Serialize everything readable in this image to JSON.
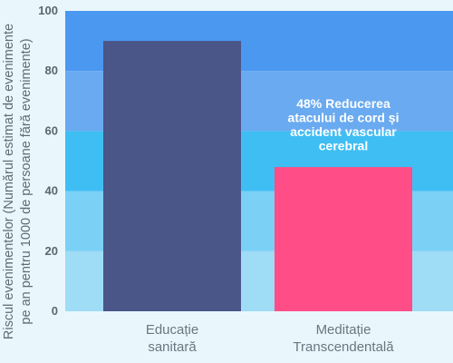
{
  "chart_data": {
    "type": "bar",
    "title": "",
    "ylabel": "Riscul evenimentelor (Numărul estimat de evenimente pe an pentru 1000 de persoane fără evenimente)",
    "ylabel_lines": [
      "Riscul evenimentelor (Numărul estimat de evenimente",
      "pe an pentru 1000 de persoane fără evenimente)"
    ],
    "xlabel": "",
    "ylim": [
      0,
      100
    ],
    "yticks": [
      0,
      20,
      40,
      60,
      80,
      100
    ],
    "categories": [
      "Educație sanitară",
      "Meditație Transcendentală"
    ],
    "category_lines": [
      [
        "Educație",
        "sanitară"
      ],
      [
        "Meditație",
        "Transcendentală"
      ]
    ],
    "values": [
      90,
      48
    ],
    "bar_colors": [
      "#4a5588",
      "#ff4d88"
    ],
    "band_colors": [
      "#9fdcf5",
      "#7ad1f5",
      "#3fbef3",
      "#6aaaf0",
      "#4a98f0"
    ],
    "grid": false,
    "annotation": {
      "category_index": 1,
      "lines": [
        "48% Reducerea",
        "atacului de cord și",
        "accident vascular",
        "cerebral"
      ]
    }
  }
}
